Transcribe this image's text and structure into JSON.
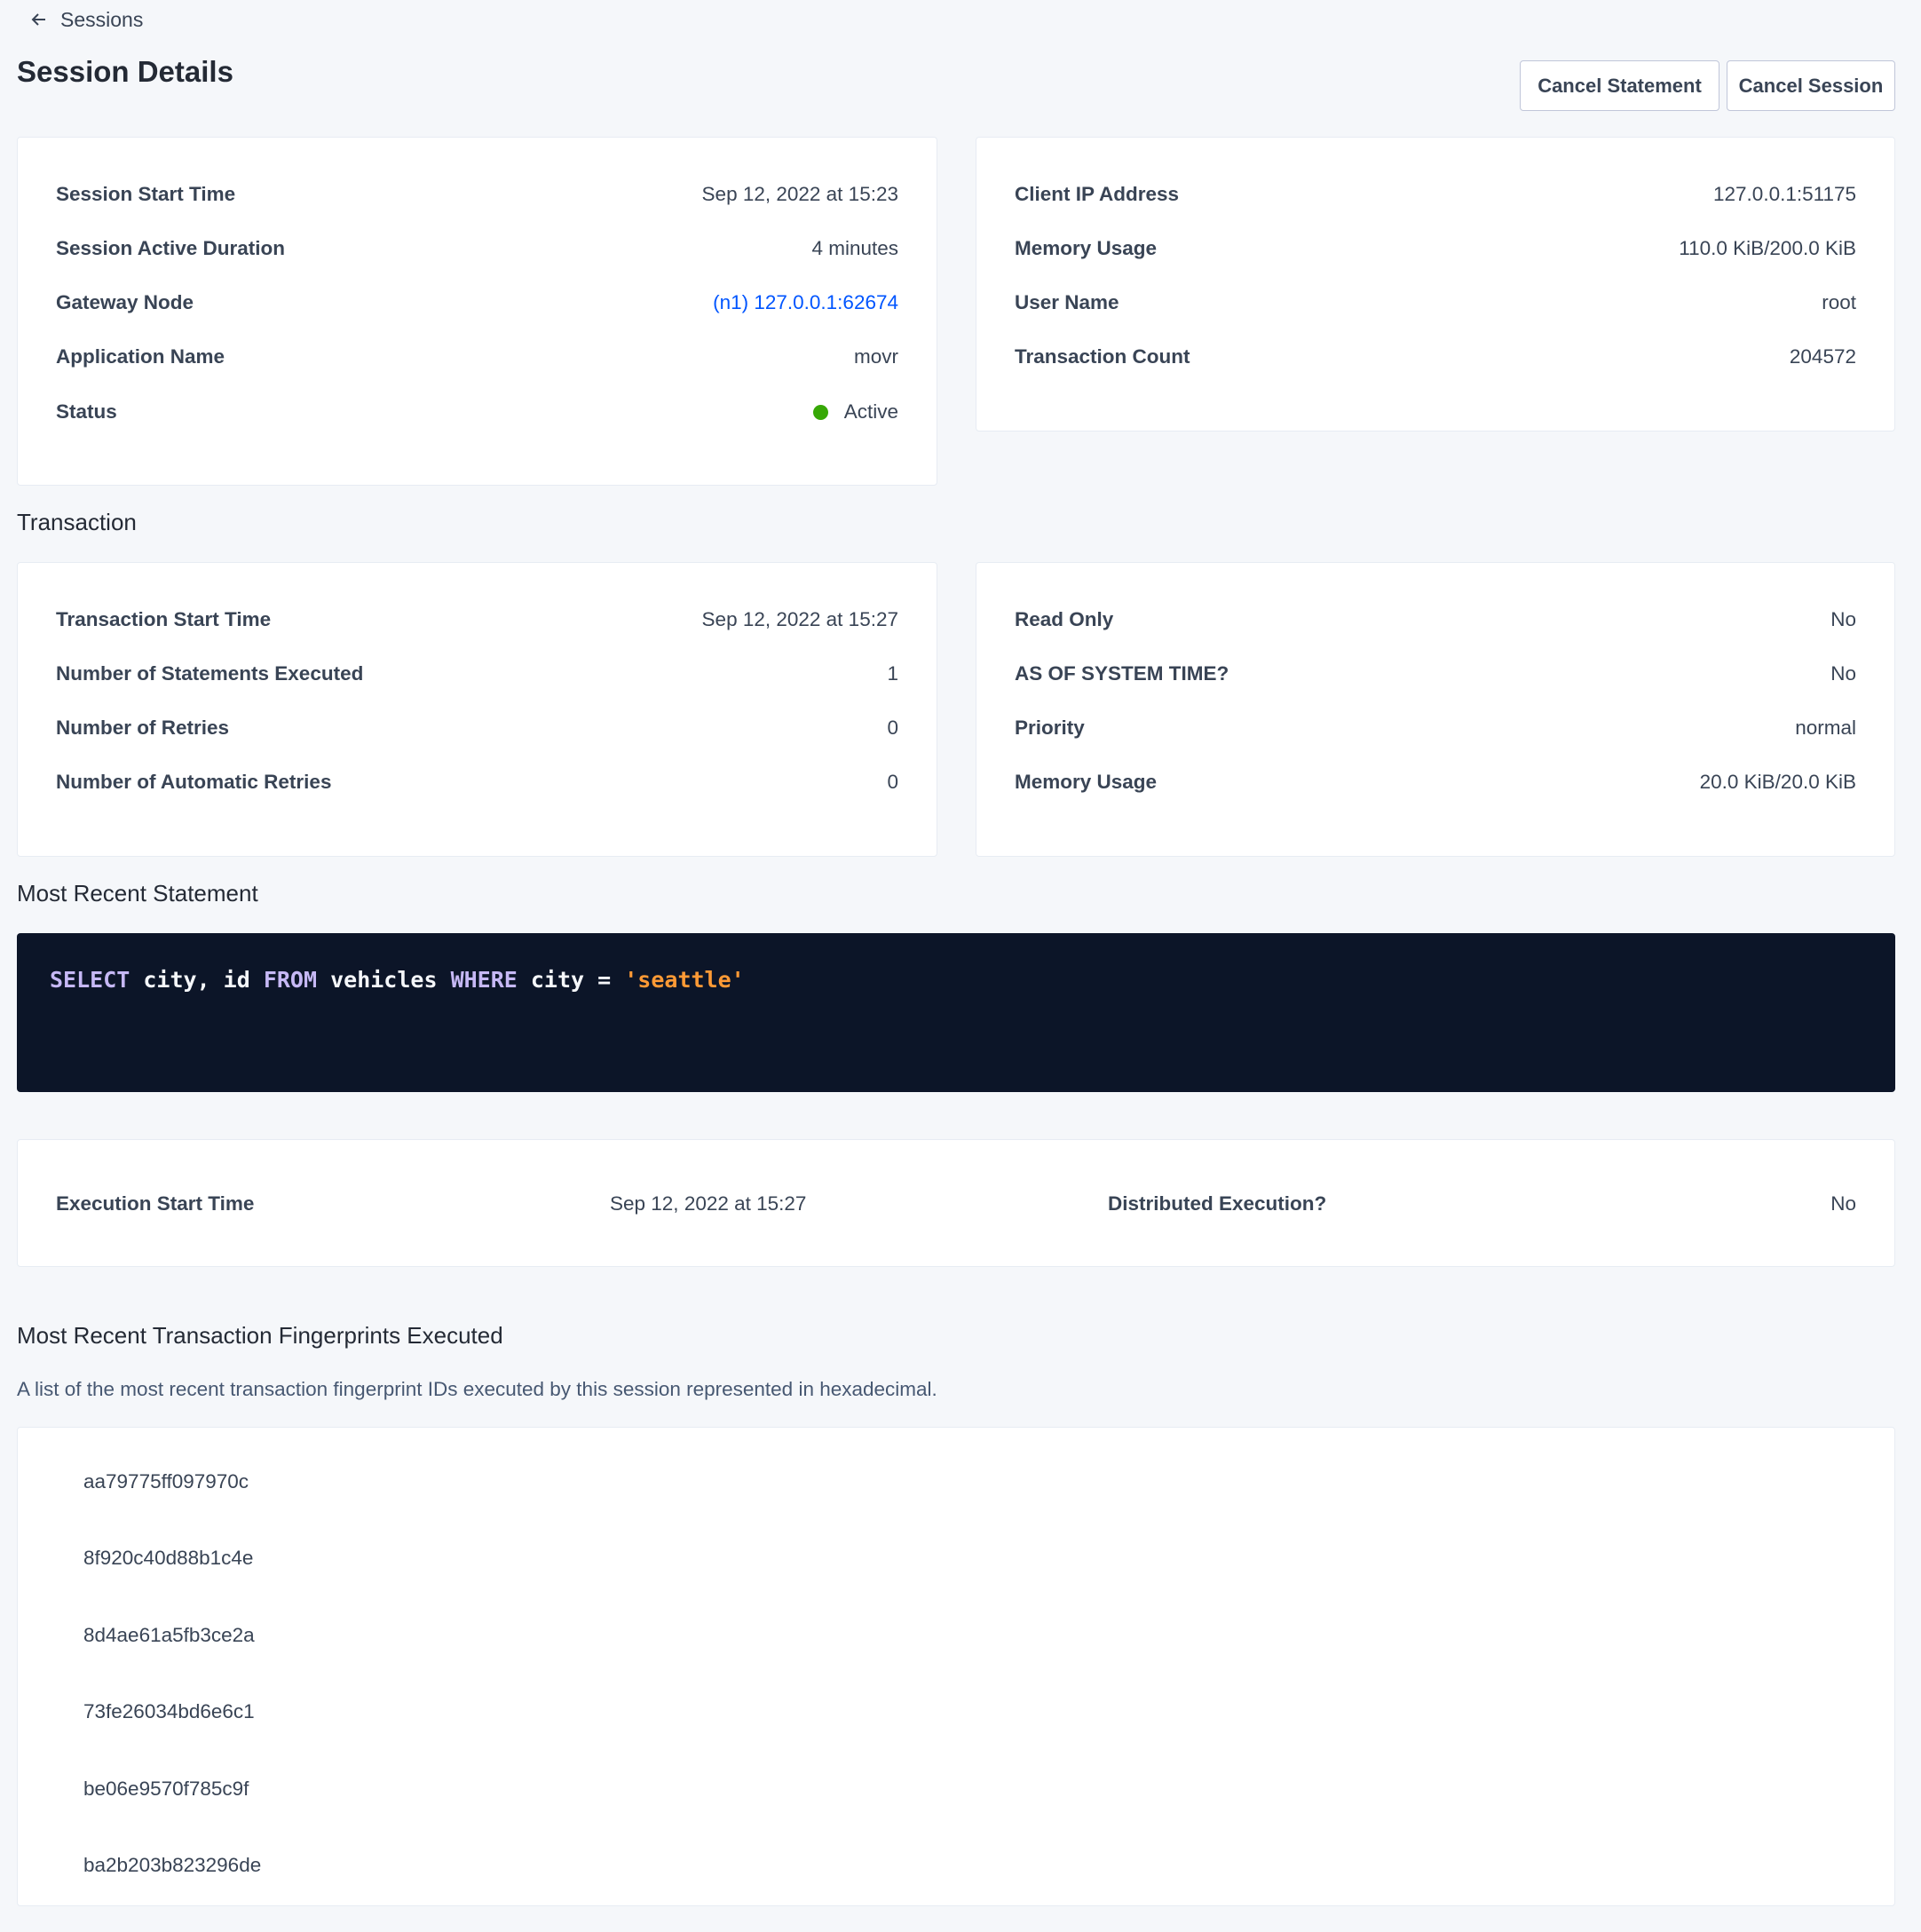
{
  "nav": {
    "back_label": "Sessions",
    "back_icon": "arrow-left-icon"
  },
  "header": {
    "title": "Session Details",
    "cancel_statement": "Cancel Statement",
    "cancel_session": "Cancel Session"
  },
  "session_left": [
    {
      "label": "Session Start Time",
      "value": "Sep 12, 2022 at 15:23"
    },
    {
      "label": "Session Active Duration",
      "value": "4 minutes"
    },
    {
      "label": "Gateway Node",
      "value": "(n1) 127.0.0.1:62674"
    },
    {
      "label": "Application Name",
      "value": "movr"
    },
    {
      "label": "Status",
      "value": "Active"
    }
  ],
  "session_right": [
    {
      "label": "Client IP Address",
      "value": "127.0.0.1:51175"
    },
    {
      "label": "Memory Usage",
      "value": "110.0 KiB/200.0 KiB"
    },
    {
      "label": "User Name",
      "value": "root"
    },
    {
      "label": "Transaction Count",
      "value": "204572"
    }
  ],
  "transaction": {
    "heading": "Transaction",
    "left": [
      {
        "label": "Transaction Start Time",
        "value": "Sep 12, 2022 at 15:27"
      },
      {
        "label": "Number of Statements Executed",
        "value": "1"
      },
      {
        "label": "Number of Retries",
        "value": "0"
      },
      {
        "label": "Number of Automatic Retries",
        "value": "0"
      }
    ],
    "right": [
      {
        "label": "Read Only",
        "value": "No"
      },
      {
        "label": "AS OF SYSTEM TIME?",
        "value": "No"
      },
      {
        "label": "Priority",
        "value": "normal"
      },
      {
        "label": "Memory Usage",
        "value": "20.0 KiB/20.0 KiB"
      }
    ]
  },
  "statement": {
    "heading": "Most Recent Statement",
    "tokens": [
      {
        "t": "SELECT",
        "k": "kw"
      },
      {
        "t": " city, id ",
        "k": ""
      },
      {
        "t": "FROM",
        "k": "kw"
      },
      {
        "t": " vehicles ",
        "k": ""
      },
      {
        "t": "WHERE",
        "k": "kw"
      },
      {
        "t": " city = ",
        "k": ""
      },
      {
        "t": "'seattle'",
        "k": "str"
      }
    ],
    "exec_start_label": "Execution Start Time",
    "exec_start_value": "Sep 12, 2022 at 15:27",
    "distributed_label": "Distributed Execution?",
    "distributed_value": "No"
  },
  "fingerprints": {
    "heading": "Most Recent Transaction Fingerprints Executed",
    "description": "A list of the most recent transaction fingerprint IDs executed by this session represented in hexadecimal.",
    "items": [
      "aa79775ff097970c",
      "8f920c40d88b1c4e",
      "8d4ae61a5fb3ce2a",
      "73fe26034bd6e6c1",
      "be06e9570f785c9f",
      "ba2b203b823296de"
    ]
  },
  "colors": {
    "status_active": "#37a806",
    "link": "#0055ff",
    "code_bg": "#0c1528",
    "keyword": "#c6b8f5",
    "string": "#ff9a35"
  }
}
